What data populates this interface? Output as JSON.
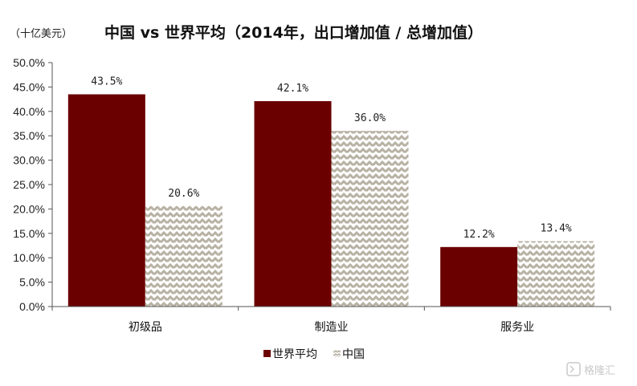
{
  "chart_data": {
    "type": "bar",
    "title": "中国 vs 世界平均（2014年，出口增加值 / 总增加值）",
    "unit_label": "（十亿美元）",
    "categories": [
      "初级品",
      "制造业",
      "服务业"
    ],
    "series": [
      {
        "name": "世界平均",
        "values": [
          43.5,
          42.1,
          12.2
        ],
        "labels": [
          "43.5%",
          "42.1%",
          "12.2%"
        ],
        "color": "#6b0000",
        "pattern": "solid"
      },
      {
        "name": "中国",
        "values": [
          20.6,
          36.0,
          13.4
        ],
        "labels": [
          "20.6%",
          "36.0%",
          "13.4%"
        ],
        "color": "#b8b2a4",
        "pattern": "zigzag"
      }
    ],
    "ylim": [
      0,
      50
    ],
    "yticks": [
      "0.0%",
      "5.0%",
      "10.0%",
      "15.0%",
      "20.0%",
      "25.0%",
      "30.0%",
      "35.0%",
      "40.0%",
      "45.0%",
      "50.0%"
    ],
    "ytick_values": [
      0,
      5,
      10,
      15,
      20,
      25,
      30,
      35,
      40,
      45,
      50
    ],
    "grid": false,
    "legend_position": "bottom-center"
  },
  "watermark": {
    "text": "格隆汇"
  }
}
